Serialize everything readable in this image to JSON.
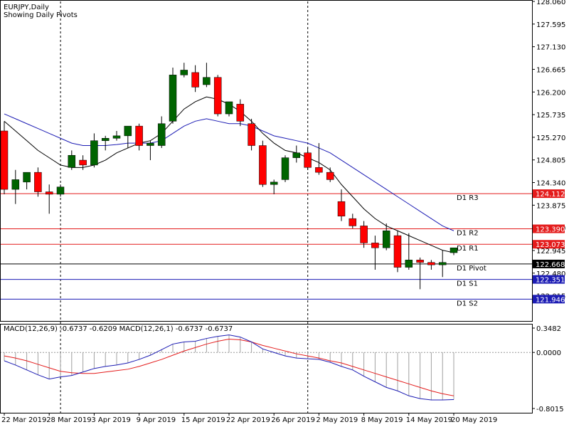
{
  "header": {
    "symbol": "EURJPY,Daily",
    "subtitle": "Showing Daily Pivots"
  },
  "chart_data": {
    "type": "candlestick",
    "ylim": [
      121.6,
      128.06
    ],
    "y_ticks": [
      "128.060",
      "127.595",
      "127.130",
      "126.665",
      "126.200",
      "125.735",
      "125.270",
      "124.805",
      "124.340",
      "123.875",
      "123.410",
      "122.945",
      "122.480",
      "122.015"
    ],
    "candles": [
      {
        "o": 125.4,
        "h": 125.6,
        "l": 124.1,
        "c": 124.2
      },
      {
        "o": 124.2,
        "h": 124.6,
        "l": 123.9,
        "c": 124.4
      },
      {
        "o": 124.35,
        "h": 124.55,
        "l": 124.2,
        "c": 124.55
      },
      {
        "o": 124.55,
        "h": 124.65,
        "l": 124.05,
        "c": 124.15
      },
      {
        "o": 124.15,
        "h": 124.3,
        "l": 123.7,
        "c": 124.1
      },
      {
        "o": 124.1,
        "h": 124.3,
        "l": 124.05,
        "c": 124.25
      },
      {
        "o": 124.65,
        "h": 125.0,
        "l": 124.6,
        "c": 124.9
      },
      {
        "o": 124.8,
        "h": 124.9,
        "l": 124.6,
        "c": 124.7
      },
      {
        "o": 124.7,
        "h": 125.35,
        "l": 124.65,
        "c": 125.2
      },
      {
        "o": 125.2,
        "h": 125.3,
        "l": 125.0,
        "c": 125.25
      },
      {
        "o": 125.25,
        "h": 125.4,
        "l": 125.2,
        "c": 125.3
      },
      {
        "o": 125.3,
        "h": 125.5,
        "l": 125.05,
        "c": 125.5
      },
      {
        "o": 125.5,
        "h": 125.55,
        "l": 125.0,
        "c": 125.1
      },
      {
        "o": 125.1,
        "h": 125.2,
        "l": 124.8,
        "c": 125.15
      },
      {
        "o": 125.1,
        "h": 125.7,
        "l": 125.05,
        "c": 125.55
      },
      {
        "o": 125.6,
        "h": 126.7,
        "l": 125.55,
        "c": 126.55
      },
      {
        "o": 126.55,
        "h": 126.8,
        "l": 126.5,
        "c": 126.65
      },
      {
        "o": 126.6,
        "h": 126.75,
        "l": 126.2,
        "c": 126.3
      },
      {
        "o": 126.35,
        "h": 126.8,
        "l": 126.3,
        "c": 126.5
      },
      {
        "o": 126.5,
        "h": 126.55,
        "l": 125.7,
        "c": 125.75
      },
      {
        "o": 125.75,
        "h": 126.0,
        "l": 125.7,
        "c": 126.0
      },
      {
        "o": 125.95,
        "h": 126.05,
        "l": 125.5,
        "c": 125.6
      },
      {
        "o": 125.55,
        "h": 125.65,
        "l": 125.0,
        "c": 125.1
      },
      {
        "o": 125.1,
        "h": 125.2,
        "l": 124.25,
        "c": 124.3
      },
      {
        "o": 124.3,
        "h": 124.4,
        "l": 124.1,
        "c": 124.35
      },
      {
        "o": 124.4,
        "h": 124.9,
        "l": 124.35,
        "c": 124.85
      },
      {
        "o": 124.85,
        "h": 125.1,
        "l": 124.75,
        "c": 124.95
      },
      {
        "o": 124.95,
        "h": 125.05,
        "l": 124.6,
        "c": 124.65
      },
      {
        "o": 124.65,
        "h": 125.15,
        "l": 124.5,
        "c": 124.55
      },
      {
        "o": 124.55,
        "h": 124.65,
        "l": 124.35,
        "c": 124.4
      },
      {
        "o": 123.95,
        "h": 124.2,
        "l": 123.55,
        "c": 123.65
      },
      {
        "o": 123.6,
        "h": 123.7,
        "l": 123.4,
        "c": 123.45
      },
      {
        "o": 123.45,
        "h": 123.55,
        "l": 123.0,
        "c": 123.1
      },
      {
        "o": 123.1,
        "h": 123.25,
        "l": 122.55,
        "c": 123.0
      },
      {
        "o": 123.0,
        "h": 123.5,
        "l": 122.95,
        "c": 123.35
      },
      {
        "o": 123.25,
        "h": 123.35,
        "l": 122.5,
        "c": 122.6
      },
      {
        "o": 122.6,
        "h": 123.3,
        "l": 122.55,
        "c": 122.75
      },
      {
        "o": 122.75,
        "h": 122.8,
        "l": 122.15,
        "c": 122.7
      },
      {
        "o": 122.7,
        "h": 122.75,
        "l": 122.55,
        "c": 122.65
      },
      {
        "o": 122.65,
        "h": 122.95,
        "l": 122.4,
        "c": 122.7
      },
      {
        "o": 122.9,
        "h": 123.0,
        "l": 122.85,
        "c": 123.0
      }
    ],
    "ma_black": [
      125.6,
      125.4,
      125.2,
      125.0,
      124.85,
      124.7,
      124.65,
      124.65,
      124.7,
      124.8,
      124.95,
      125.05,
      125.15,
      125.2,
      125.35,
      125.6,
      125.85,
      126.0,
      126.1,
      126.05,
      125.95,
      125.8,
      125.6,
      125.35,
      125.15,
      125.0,
      124.95,
      124.85,
      124.75,
      124.6,
      124.3,
      124.05,
      123.8,
      123.6,
      123.45,
      123.35,
      123.25,
      123.15,
      123.05,
      122.95,
      122.9
    ],
    "ma_blue": [
      125.75,
      125.65,
      125.55,
      125.45,
      125.35,
      125.25,
      125.15,
      125.1,
      125.1,
      125.1,
      125.12,
      125.15,
      125.15,
      125.15,
      125.2,
      125.35,
      125.5,
      125.6,
      125.65,
      125.6,
      125.55,
      125.55,
      125.5,
      125.4,
      125.3,
      125.25,
      125.2,
      125.15,
      125.05,
      124.95,
      124.8,
      124.65,
      124.5,
      124.35,
      124.2,
      124.05,
      123.9,
      123.75,
      123.6,
      123.45,
      123.35
    ],
    "pivots": [
      {
        "label": "D1  R3",
        "value": 124.112,
        "tag": "124.112",
        "color": "#e41c1c"
      },
      {
        "label": "D1  R2",
        "value": 123.39,
        "tag": "123.390",
        "color": "#e41c1c"
      },
      {
        "label": "D1  R1",
        "value": 123.073,
        "tag": "123.073",
        "color": "#e41c1c"
      },
      {
        "label": "D1  Pivot",
        "value": 122.668,
        "tag": "122.668",
        "color": "#000000"
      },
      {
        "label": "D1  S1",
        "value": 122.351,
        "tag": "122.351",
        "color": "#1c1cb4"
      },
      {
        "label": "D1  S2",
        "value": 121.946,
        "tag": "121.946",
        "color": "#1c1cb4"
      }
    ],
    "x_labels": [
      {
        "index": 0,
        "label": "22 Mar 2019"
      },
      {
        "index": 4,
        "label": "28 Mar 2019"
      },
      {
        "index": 8,
        "label": "3 Apr 2019"
      },
      {
        "index": 12,
        "label": "9 Apr 2019"
      },
      {
        "index": 16,
        "label": "15 Apr 2019"
      },
      {
        "index": 20,
        "label": "22 Apr 2019"
      },
      {
        "index": 24,
        "label": "26 Apr 2019"
      },
      {
        "index": 28,
        "label": "2 May 2019"
      },
      {
        "index": 32,
        "label": "8 May 2019"
      },
      {
        "index": 36,
        "label": "14 May 2019"
      },
      {
        "index": 40,
        "label": "20 May 2019"
      }
    ],
    "separators": [
      5,
      27
    ],
    "colors": {
      "bull": "#006400",
      "bear": "#ff0000",
      "ma_black": "#000000",
      "ma_blue": "#1c1cb4"
    }
  },
  "macd": {
    "label": "MACD(12,26,9) -0.6737 -0.6209 MACD(12,26,1) -0.6737 -0.6737",
    "y_ticks": [
      "0.3482",
      "0.0000",
      "-0.8015"
    ],
    "ylim": [
      -0.8015,
      0.3482
    ],
    "main": [
      -0.12,
      -0.18,
      -0.25,
      -0.32,
      -0.38,
      -0.35,
      -0.33,
      -0.28,
      -0.23,
      -0.2,
      -0.18,
      -0.15,
      -0.1,
      -0.04,
      0.04,
      0.12,
      0.15,
      0.16,
      0.2,
      0.23,
      0.25,
      0.22,
      0.15,
      0.05,
      0.0,
      -0.05,
      -0.08,
      -0.09,
      -0.1,
      -0.14,
      -0.2,
      -0.25,
      -0.34,
      -0.42,
      -0.5,
      -0.55,
      -0.62,
      -0.66,
      -0.68,
      -0.68,
      -0.6737
    ],
    "signal": [
      -0.05,
      -0.08,
      -0.12,
      -0.17,
      -0.22,
      -0.27,
      -0.29,
      -0.3,
      -0.3,
      -0.28,
      -0.26,
      -0.24,
      -0.2,
      -0.15,
      -0.1,
      -0.04,
      0.02,
      0.07,
      0.12,
      0.16,
      0.19,
      0.18,
      0.15,
      0.1,
      0.06,
      0.02,
      -0.02,
      -0.05,
      -0.08,
      -0.12,
      -0.15,
      -0.2,
      -0.25,
      -0.3,
      -0.35,
      -0.4,
      -0.45,
      -0.5,
      -0.55,
      -0.59,
      -0.6209
    ],
    "colors": {
      "main": "#1c1cb4",
      "signal": "#e41c1c",
      "hist": "#a0a0a0"
    }
  }
}
